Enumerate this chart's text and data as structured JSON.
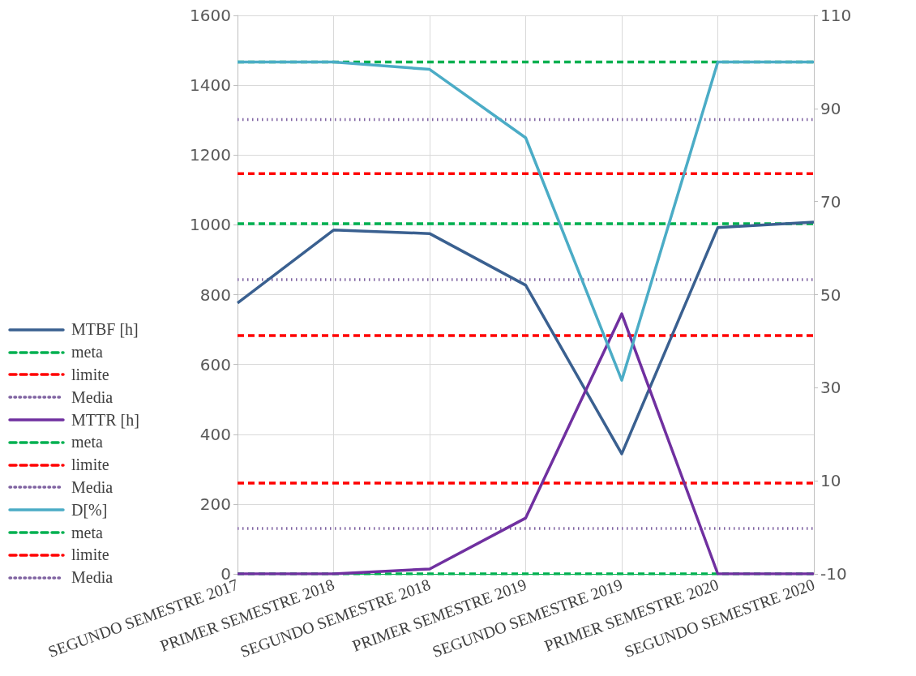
{
  "chart_data": {
    "type": "line",
    "categories": [
      "SEGUNDO SEMESTRE 2017",
      "PRIMER SEMESTRE 2018",
      "SEGUNDO SEMESTRE 2018",
      "PRIMER SEMESTRE 2019",
      "SEGUNDO SEMESTRE 2019",
      "PRIMER SEMESTRE 2020",
      "SEGUNDO SEMESTRE 2020"
    ],
    "series": [
      {
        "name": "MTBF [h]",
        "color": "#3a6090",
        "values": [
          776,
          985,
          975,
          827,
          344,
          992,
          1008
        ]
      },
      {
        "name": "MTTR [h]",
        "color": "#7030a0",
        "values": [
          0,
          0,
          14,
          160,
          745,
          0,
          0
        ]
      },
      {
        "name": "D[%]",
        "color": "#4bacc6",
        "axis": "y2",
        "values": [
          100,
          100,
          98.4,
          83.7,
          31.6,
          100,
          100
        ]
      }
    ],
    "ref_lines": [
      {
        "axis": "y",
        "value": 1003,
        "label": "meta",
        "color": "#00b050",
        "line_style": "dashed"
      },
      {
        "axis": "y",
        "value": 683,
        "label": "limite",
        "color": "#ff0000",
        "line_style": "dashed"
      },
      {
        "axis": "y",
        "value": 843,
        "label": "Media",
        "color": "#8064a2",
        "line_style": "dotted"
      },
      {
        "axis": "y",
        "value": 0,
        "label": "meta",
        "color": "#00b050",
        "line_style": "dashed"
      },
      {
        "axis": "y",
        "value": 260,
        "label": "limite",
        "color": "#ff0000",
        "line_style": "dashed"
      },
      {
        "axis": "y",
        "value": 130,
        "label": "Media",
        "color": "#8064a2",
        "line_style": "dotted"
      },
      {
        "axis": "y2",
        "value": 100,
        "label": "meta",
        "color": "#00b050",
        "line_style": "dashed"
      },
      {
        "axis": "y2",
        "value": 76,
        "label": "limite",
        "color": "#ff0000",
        "line_style": "dashed"
      },
      {
        "axis": "y2",
        "value": 87.6,
        "label": "Media",
        "color": "#8064a2",
        "line_style": "dotted"
      }
    ],
    "ylim": [
      0,
      1600
    ],
    "yticks": [
      0,
      200,
      400,
      600,
      800,
      1000,
      1200,
      1400,
      1600
    ],
    "y2lim": [
      -10,
      110
    ],
    "y2ticks": [
      -10,
      10,
      30,
      50,
      70,
      90,
      110
    ],
    "grid": true,
    "legend": "left",
    "marker": "none",
    "line_style": "solid"
  }
}
